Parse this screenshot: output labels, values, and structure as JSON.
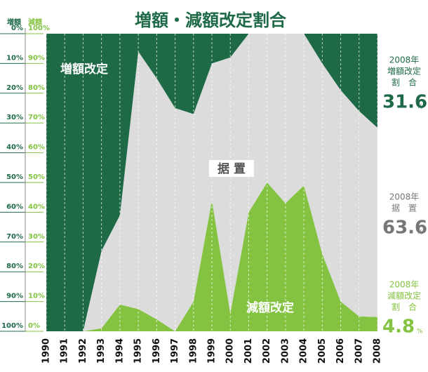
{
  "chart_data": {
    "type": "stacked-area",
    "title": "増額・減額改定割合",
    "categories": [
      "1990",
      "1991",
      "1992",
      "1993",
      "1994",
      "1995",
      "1996",
      "1997",
      "1998",
      "1999",
      "2000",
      "2001",
      "2002",
      "2003",
      "2004",
      "2005",
      "2006",
      "2007",
      "2008"
    ],
    "series": [
      {
        "name": "減額改定",
        "color": "#84c341",
        "axis": "y",
        "values": [
          0,
          0,
          0,
          1,
          9,
          7.5,
          4,
          0,
          10,
          44,
          6,
          40,
          50,
          43,
          49,
          26,
          10,
          5,
          4.8
        ]
      },
      {
        "name": "据 置",
        "color": "#dcdcdc",
        "values": [
          0,
          0,
          0,
          26,
          30,
          86.5,
          81,
          75,
          63,
          46,
          86,
          60,
          50,
          57,
          51,
          64,
          71,
          69,
          63.6
        ]
      },
      {
        "name": "増額改定",
        "color": "#1e6a47",
        "axis": "y2",
        "values": [
          100,
          100,
          100,
          73,
          61,
          6,
          15,
          25,
          27,
          10,
          8,
          0,
          0,
          0,
          0,
          10,
          19,
          26,
          31.6
        ]
      }
    ],
    "ylim": [
      0,
      100
    ],
    "yticks": [
      {
        "value": 0,
        "label": "0%"
      },
      {
        "value": 10,
        "label": "10%"
      },
      {
        "value": 20,
        "label": "20%"
      },
      {
        "value": 30,
        "label": "30%"
      },
      {
        "value": 40,
        "label": "40%"
      },
      {
        "value": 50,
        "label": "50%"
      },
      {
        "value": 60,
        "label": "60%"
      },
      {
        "value": 70,
        "label": "70%"
      },
      {
        "value": 80,
        "label": "80%"
      },
      {
        "value": 90,
        "label": "90%"
      },
      {
        "value": 100,
        "label": "100%"
      }
    ],
    "y2lim": [
      100,
      0
    ],
    "y2ticks": [
      {
        "value": 0,
        "label": "0%"
      },
      {
        "value": 10,
        "label": "10%"
      },
      {
        "value": 20,
        "label": "20%"
      },
      {
        "value": 30,
        "label": "30%"
      },
      {
        "value": 40,
        "label": "40%"
      },
      {
        "value": 50,
        "label": "50%"
      },
      {
        "value": 60,
        "label": "60%"
      },
      {
        "value": 70,
        "label": "70%"
      },
      {
        "value": 80,
        "label": "80%"
      },
      {
        "value": 90,
        "label": "90%"
      },
      {
        "value": 100,
        "label": "100%"
      }
    ],
    "y_axis_label": "減額",
    "y2_axis_label": "増額",
    "annotations": {
      "year": "2008年",
      "ratio": "割　合",
      "keep": "据　置",
      "unit": "%"
    }
  }
}
